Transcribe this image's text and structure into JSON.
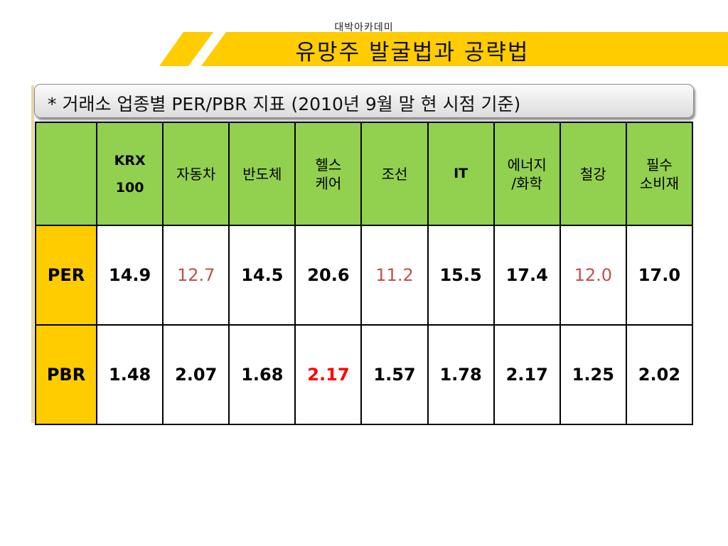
{
  "header": {
    "academy": "대박아카데미",
    "title": "유망주 발굴법과 공략법",
    "colors": {
      "banner_yellow": "#ffcc00",
      "accent_green": "#92d050"
    }
  },
  "subtitle": "* 거래소 업종별 PER/PBR 지표 (2010년 9월 말 현 시점 기준)",
  "table": {
    "columns": [
      {
        "line1": "KRX",
        "line2": "100"
      },
      {
        "line1": "자동차",
        "line2": ""
      },
      {
        "line1": "반도체",
        "line2": ""
      },
      {
        "line1": "헬스",
        "line2": "케어"
      },
      {
        "line1": "조선",
        "line2": ""
      },
      {
        "line1": "IT",
        "line2": ""
      },
      {
        "line1": "에너지",
        "line2": "/화학"
      },
      {
        "line1": "철강",
        "line2": ""
      },
      {
        "line1": "필수",
        "line2": "소비재"
      }
    ],
    "rows": [
      {
        "label": "PER",
        "values": [
          "14.9",
          "12.7",
          "14.5",
          "20.6",
          "11.2",
          "15.5",
          "17.4",
          "12.0",
          "17.0"
        ],
        "highlighted": [
          false,
          true,
          false,
          false,
          true,
          false,
          false,
          true,
          false
        ]
      },
      {
        "label": "PBR",
        "values": [
          "1.48",
          "2.07",
          "1.68",
          "2.17",
          "1.57",
          "1.78",
          "2.17",
          "1.25",
          "2.02"
        ],
        "highlighted": [
          false,
          false,
          false,
          true,
          false,
          false,
          false,
          false,
          false
        ]
      }
    ]
  }
}
